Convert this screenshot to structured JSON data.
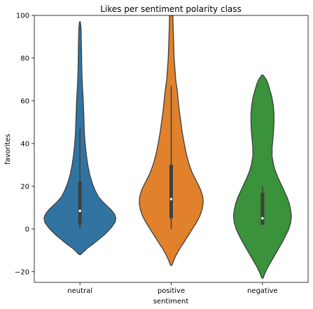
{
  "chart_data": {
    "type": "violin",
    "title": "Likes per sentiment polarity class",
    "xlabel": "sentiment",
    "ylabel": "favorites",
    "ylim": [
      -25,
      100
    ],
    "yticks": [
      -20,
      0,
      20,
      40,
      60,
      80,
      100
    ],
    "grid": false,
    "series": [
      {
        "name": "neutral",
        "color": "#3274a1",
        "min": -12,
        "max": 97,
        "q1": 2,
        "median": 8.5,
        "q3": 22,
        "whisker_low": 0,
        "whisker_high": 47,
        "density": [
          [
            -12,
            0.02
          ],
          [
            -11,
            0.08
          ],
          [
            -9,
            0.2
          ],
          [
            -7,
            0.36
          ],
          [
            -5,
            0.5
          ],
          [
            -3,
            0.64
          ],
          [
            -1,
            0.76
          ],
          [
            1,
            0.86
          ],
          [
            3,
            0.94
          ],
          [
            5,
            0.97
          ],
          [
            7,
            0.93
          ],
          [
            9,
            0.84
          ],
          [
            11,
            0.72
          ],
          [
            13,
            0.6
          ],
          [
            15,
            0.5
          ],
          [
            18,
            0.41
          ],
          [
            21,
            0.34
          ],
          [
            25,
            0.27
          ],
          [
            30,
            0.21
          ],
          [
            35,
            0.17
          ],
          [
            40,
            0.14
          ],
          [
            45,
            0.12
          ],
          [
            50,
            0.11
          ],
          [
            55,
            0.1
          ],
          [
            60,
            0.09
          ],
          [
            63,
            0.08
          ],
          [
            66,
            0.07
          ],
          [
            70,
            0.06
          ],
          [
            75,
            0.05
          ],
          [
            80,
            0.045
          ],
          [
            85,
            0.04
          ],
          [
            90,
            0.035
          ],
          [
            94,
            0.03
          ],
          [
            97,
            0.01
          ]
        ]
      },
      {
        "name": "positive",
        "color": "#e1812c",
        "min": -17,
        "max": 100,
        "q1": 5,
        "median": 14,
        "q3": 30,
        "whisker_low": 0,
        "whisker_high": 67,
        "density": [
          [
            -17,
            0.02
          ],
          [
            -15,
            0.06
          ],
          [
            -12,
            0.14
          ],
          [
            -9,
            0.24
          ],
          [
            -6,
            0.35
          ],
          [
            -3,
            0.46
          ],
          [
            0,
            0.57
          ],
          [
            3,
            0.68
          ],
          [
            6,
            0.77
          ],
          [
            9,
            0.83
          ],
          [
            12,
            0.86
          ],
          [
            15,
            0.85
          ],
          [
            18,
            0.8
          ],
          [
            21,
            0.72
          ],
          [
            24,
            0.63
          ],
          [
            27,
            0.55
          ],
          [
            31,
            0.47
          ],
          [
            35,
            0.41
          ],
          [
            40,
            0.35
          ],
          [
            45,
            0.3
          ],
          [
            50,
            0.26
          ],
          [
            55,
            0.22
          ],
          [
            60,
            0.19
          ],
          [
            65,
            0.16
          ],
          [
            70,
            0.12
          ],
          [
            75,
            0.1
          ],
          [
            80,
            0.08
          ],
          [
            85,
            0.07
          ],
          [
            90,
            0.06
          ],
          [
            95,
            0.05
          ],
          [
            100,
            0.045
          ]
        ]
      },
      {
        "name": "negative",
        "color": "#3a923a",
        "min": -23,
        "max": 72,
        "q1": 2,
        "median": 5,
        "q3": 17,
        "whisker_low": 2,
        "whisker_high": 20,
        "density": [
          [
            -23,
            0.02
          ],
          [
            -21,
            0.06
          ],
          [
            -18,
            0.14
          ],
          [
            -15,
            0.24
          ],
          [
            -12,
            0.34
          ],
          [
            -9,
            0.44
          ],
          [
            -6,
            0.54
          ],
          [
            -3,
            0.63
          ],
          [
            0,
            0.71
          ],
          [
            3,
            0.76
          ],
          [
            6,
            0.78
          ],
          [
            9,
            0.76
          ],
          [
            12,
            0.72
          ],
          [
            15,
            0.66
          ],
          [
            18,
            0.58
          ],
          [
            21,
            0.5
          ],
          [
            24,
            0.42
          ],
          [
            27,
            0.35
          ],
          [
            30,
            0.3
          ],
          [
            34,
            0.26
          ],
          [
            38,
            0.26
          ],
          [
            42,
            0.28
          ],
          [
            46,
            0.3
          ],
          [
            50,
            0.31
          ],
          [
            54,
            0.31
          ],
          [
            58,
            0.29
          ],
          [
            62,
            0.25
          ],
          [
            65,
            0.2
          ],
          [
            68,
            0.15
          ],
          [
            70,
            0.1
          ],
          [
            71,
            0.06
          ],
          [
            72,
            0.02
          ]
        ]
      }
    ]
  }
}
